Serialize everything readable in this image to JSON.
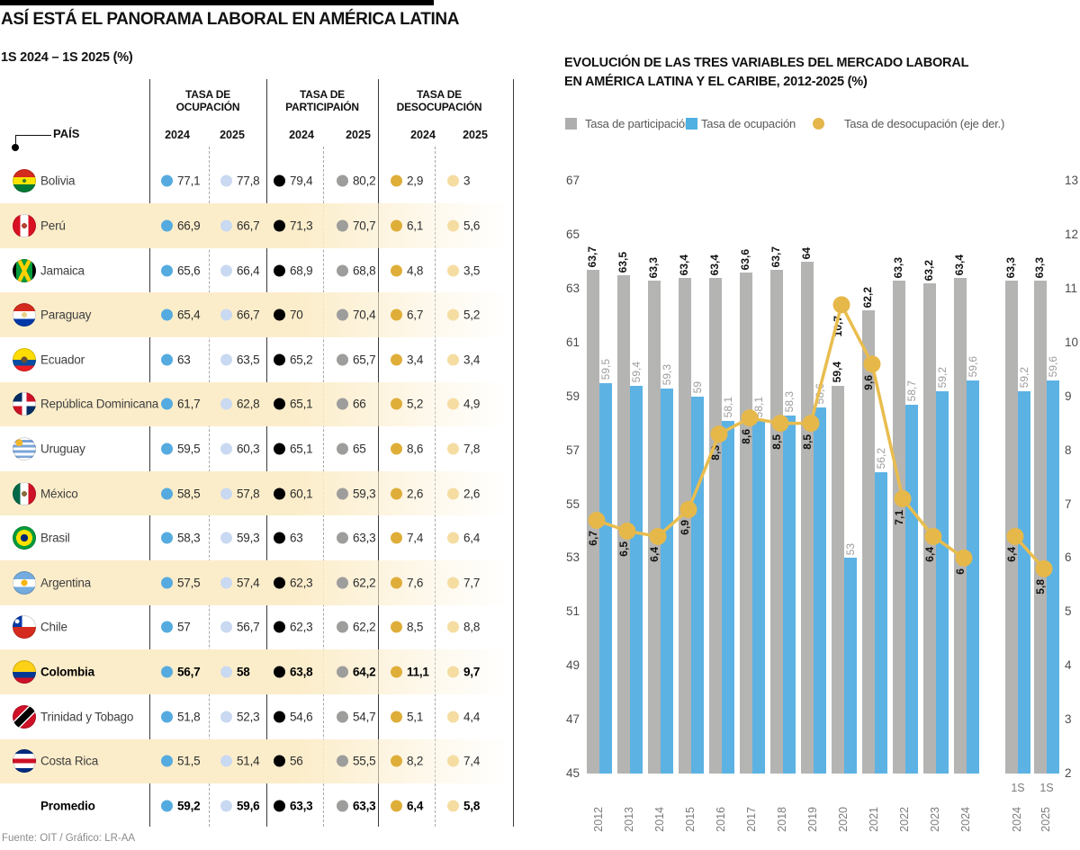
{
  "header": {
    "title": "ASÍ ESTÁ EL PANORAMA LABORAL EN AMÉRICA LATINA",
    "subtitle": "1S 2024 – 1S 2025 (%)",
    "source": "Fuente: OIT / Gráfico: LR-AA"
  },
  "table": {
    "pais_label": "PAÍS",
    "groups": [
      {
        "line1": "TASA DE",
        "line2": "OCUPACIÓN"
      },
      {
        "line1": "TASA DE",
        "line2": "PARTICIPAIÓN"
      },
      {
        "line1": "TASA DE",
        "line2": "DESOCUPACIÓN"
      }
    ],
    "year_headers": [
      "2024",
      "2025",
      "2024",
      "2025",
      "2024",
      "2025"
    ],
    "dot_colors": [
      "#55abdf",
      "#c9d9f1",
      "#000000",
      "#9d9d9c",
      "#dfae39",
      "#f5dda2"
    ],
    "rows": [
      {
        "country": "Bolivia",
        "flag": "bolivia",
        "striped": false,
        "bold": false,
        "values": [
          "77,1",
          "77,8",
          "79,4",
          "80,2",
          "2,9",
          "3"
        ]
      },
      {
        "country": "Perú",
        "flag": "peru",
        "striped": true,
        "bold": false,
        "values": [
          "66,9",
          "66,7",
          "71,3",
          "70,7",
          "6,1",
          "5,6"
        ]
      },
      {
        "country": "Jamaica",
        "flag": "jamaica",
        "striped": false,
        "bold": false,
        "values": [
          "65,6",
          "66,4",
          "68,9",
          "68,8",
          "4,8",
          "3,5"
        ]
      },
      {
        "country": "Paraguay",
        "flag": "paraguay",
        "striped": true,
        "bold": false,
        "values": [
          "65,4",
          "66,7",
          "70",
          "70,4",
          "6,7",
          "5,2"
        ]
      },
      {
        "country": "Ecuador",
        "flag": "ecuador",
        "striped": false,
        "bold": false,
        "values": [
          "63",
          "63,5",
          "65,2",
          "65,7",
          "3,4",
          "3,4"
        ]
      },
      {
        "country": "República Dominicana",
        "flag": "dominicana",
        "striped": true,
        "bold": false,
        "values": [
          "61,7",
          "62,8",
          "65,1",
          "66",
          "5,2",
          "4,9"
        ]
      },
      {
        "country": "Uruguay",
        "flag": "uruguay",
        "striped": false,
        "bold": false,
        "values": [
          "59,5",
          "60,3",
          "65,1",
          "65",
          "8,6",
          "7,8"
        ]
      },
      {
        "country": "México",
        "flag": "mexico",
        "striped": true,
        "bold": false,
        "values": [
          "58,5",
          "57,8",
          "60,1",
          "59,3",
          "2,6",
          "2,6"
        ]
      },
      {
        "country": "Brasil",
        "flag": "brasil",
        "striped": false,
        "bold": false,
        "values": [
          "58,3",
          "59,3",
          "63",
          "63,3",
          "7,4",
          "6,4"
        ]
      },
      {
        "country": "Argentina",
        "flag": "argentina",
        "striped": true,
        "bold": false,
        "values": [
          "57,5",
          "57,4",
          "62,3",
          "62,2",
          "7,6",
          "7,7"
        ]
      },
      {
        "country": "Chile",
        "flag": "chile",
        "striped": false,
        "bold": false,
        "values": [
          "57",
          "56,7",
          "62,3",
          "62,2",
          "8,5",
          "8,8"
        ]
      },
      {
        "country": "Colombia",
        "flag": "colombia",
        "striped": true,
        "bold": true,
        "values": [
          "56,7",
          "58",
          "63,8",
          "64,2",
          "11,1",
          "9,7"
        ]
      },
      {
        "country": "Trinidad y Tobago",
        "flag": "trinidad",
        "striped": false,
        "bold": false,
        "values": [
          "51,8",
          "52,3",
          "54,6",
          "54,7",
          "5,1",
          "4,4"
        ]
      },
      {
        "country": "Costa Rica",
        "flag": "costarica",
        "striped": true,
        "bold": false,
        "values": [
          "51,5",
          "51,4",
          "56",
          "55,5",
          "8,2",
          "7,4"
        ]
      },
      {
        "country": "Promedio",
        "flag": null,
        "striped": false,
        "bold": true,
        "values": [
          "59,2",
          "59,6",
          "63,3",
          "63,3",
          "6,4",
          "5,8"
        ]
      }
    ]
  },
  "chart_data": {
    "type": "bar+line",
    "title": "EVOLUCIÓN DE LAS TRES VARIABLES DEL MERCADO LABORAL EN AMÉRICA LATINA Y EL CARIBE, 2012-2025 (%)",
    "title_lines": [
      "EVOLUCIÓN DE LAS TRES VARIABLES DEL MERCADO LABORAL",
      "EN AMÉRICA LATINA Y EL CARIBE, 2012-2025 (%)"
    ],
    "legend": [
      {
        "label": "Tasa de participación",
        "color": "#aeaeae",
        "shape": "square"
      },
      {
        "label": "Tasa de ocupación",
        "color": "#4fb0e1",
        "shape": "square"
      },
      {
        "label": "Tasa de desocupación (eje der.)",
        "color": "#e4b64b",
        "shape": "circle"
      }
    ],
    "categories": [
      "2012",
      "2013",
      "2014",
      "2015",
      "2016",
      "2017",
      "2018",
      "2019",
      "2020",
      "2021",
      "2022",
      "2023",
      "2024"
    ],
    "half_categories": [
      {
        "prefix": "1S",
        "year": "2024"
      },
      {
        "prefix": "1S",
        "year": "2025"
      }
    ],
    "series": [
      {
        "name": "Tasa de participación",
        "axis": "left",
        "kind": "bar",
        "color": "#b4b4b3",
        "labels": [
          "63,7",
          "63,5",
          "63,3",
          "63,4",
          "63,4",
          "63,6",
          "63,7",
          "64",
          "59,4",
          "62,2",
          "63,3",
          "63,2",
          "63,4"
        ],
        "half_labels": [
          "63,3",
          "63,3"
        ]
      },
      {
        "name": "Tasa de ocupación",
        "axis": "left",
        "kind": "bar",
        "color": "#5cb2e3",
        "labels": [
          "59,5",
          "59,4",
          "59,3",
          "59",
          "58,1",
          "58,1",
          "58,3",
          "58,6",
          "53",
          "56,2",
          "58,7",
          "59,2",
          "59,6"
        ],
        "half_labels": [
          "59,2",
          "59,6"
        ]
      },
      {
        "name": "Tasa de desocupación (eje der.)",
        "axis": "right",
        "kind": "line",
        "color": "#e9bd4e",
        "labels": [
          "6,7",
          "6,5",
          "6,4",
          "6,9",
          "8,3",
          "8,6",
          "8,5",
          "8,5",
          "10,7",
          "9,6",
          "7,1",
          "6,4",
          "6"
        ],
        "half_labels": [
          "6,4",
          "5,8"
        ]
      }
    ],
    "left_axis": {
      "min": 45,
      "max": 67,
      "ticks": [
        67,
        65,
        63,
        61,
        59,
        57,
        55,
        53,
        51,
        49,
        47,
        45
      ]
    },
    "right_axis": {
      "min": 2,
      "max": 13,
      "ticks": [
        13,
        12,
        11,
        10,
        9,
        8,
        7,
        6,
        5,
        4,
        3,
        2
      ]
    },
    "grid": false,
    "legend_position": "top"
  }
}
